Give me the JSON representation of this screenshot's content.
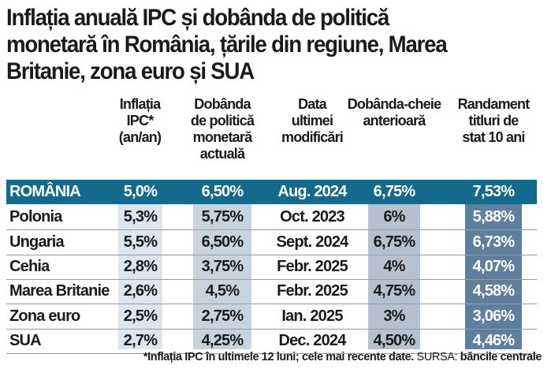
{
  "title": [
    "Inflația anuală IPC și dobânda de politică",
    "monetară în România, țările din regiune, Marea",
    "Britanie, zona euro și SUA"
  ],
  "chart_data": {
    "type": "table",
    "columns": [
      {
        "label": [
          "Inflația",
          "IPC*",
          "(an/an)"
        ]
      },
      {
        "label": [
          "Dobânda",
          "de politică",
          "monetară",
          "actuală"
        ]
      },
      {
        "label": [
          "Data",
          "ultimei",
          "modificări"
        ]
      },
      {
        "label": [
          "Dobânda-cheie",
          "anterioară"
        ]
      },
      {
        "label": [
          "Randament",
          "titluri de",
          "stat 10 ani"
        ]
      }
    ],
    "rows": [
      {
        "name": "ROMÂNIA",
        "values": [
          "5,0%",
          "6,50%",
          "Aug. 2024",
          "6,75%",
          "7,53%"
        ]
      },
      {
        "name": "Polonia",
        "values": [
          "5,3%",
          "5,75%",
          "Oct. 2023",
          "6%",
          "5,88%"
        ]
      },
      {
        "name": "Ungaria",
        "values": [
          "5,5%",
          "6,50%",
          "Sept. 2024",
          "6,75%",
          "6,73%"
        ]
      },
      {
        "name": "Cehia",
        "values": [
          "2,8%",
          "3,75%",
          "Febr. 2025",
          "4%",
          "4,07%"
        ]
      },
      {
        "name": "Marea Britanie",
        "values": [
          "2,6%",
          "4,5%",
          "Febr. 2025",
          "4,75%",
          "4,58%"
        ]
      },
      {
        "name": "Zona euro",
        "values": [
          "2,5%",
          "2,75%",
          "Ian. 2025",
          "3%",
          "3,06%"
        ]
      },
      {
        "name": "SUA",
        "values": [
          "2,7%",
          "4,25%",
          "Dec. 2024",
          "4,50%",
          "4,46%"
        ]
      }
    ],
    "colors": {
      "highlight_row": "#136a8d",
      "col1": "#dfe5ee",
      "col2": "#c8d3e0",
      "col4": "#b4c1d1",
      "col5": "#5e7f9d"
    }
  },
  "footer": {
    "note": "*Inflația IPC în ultimele 12 luni; cele mai recente date.",
    "source_label": "SURSA:",
    "source": "băncile centrale"
  }
}
